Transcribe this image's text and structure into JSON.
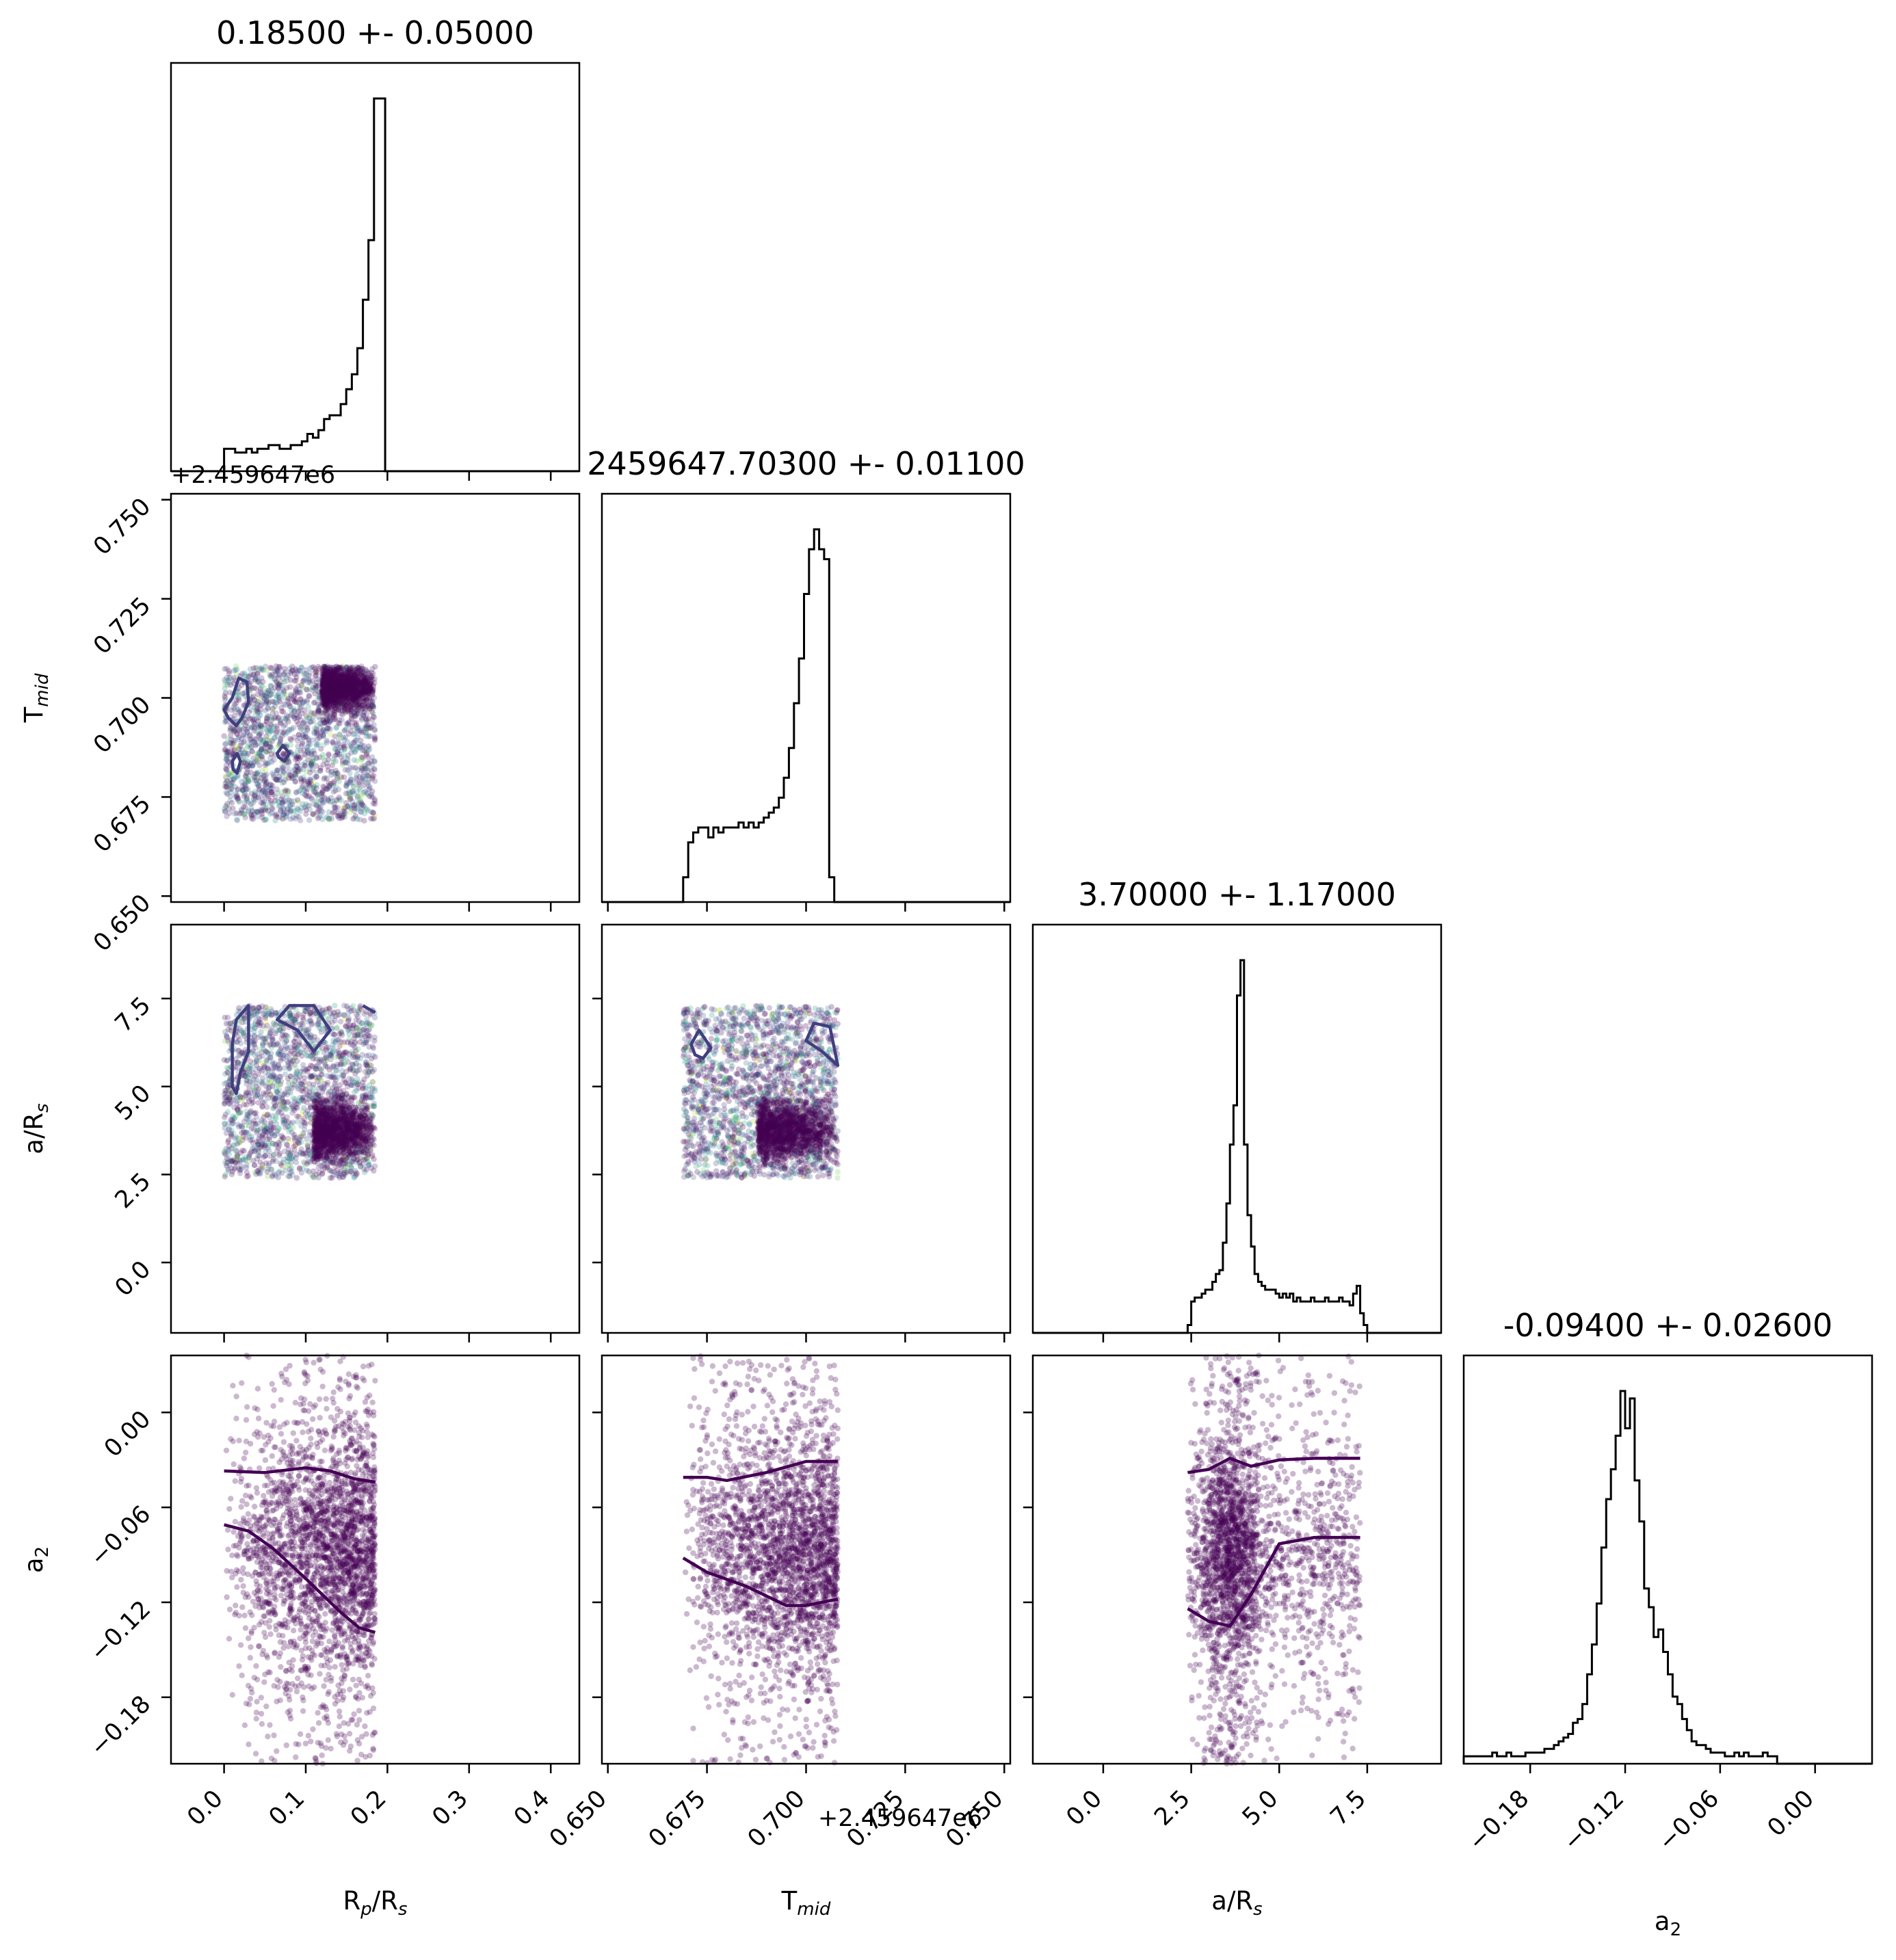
{
  "chart_data": {
    "type": "corner",
    "parameters": [
      {
        "key": "rp",
        "label_main": "R",
        "label_sub": "p",
        "label_rest": "/R",
        "label_sub2": "s",
        "range": [
          -0.065,
          0.435
        ],
        "ticks": [
          "0.0",
          "0.1",
          "0.2",
          "0.3",
          "0.4"
        ],
        "tick_values": [
          0,
          0.1,
          0.2,
          0.3,
          0.4
        ],
        "title": "0.18500 +- 0.05000",
        "offset": ""
      },
      {
        "key": "tmid",
        "label_main": "T",
        "label_sub": "mid",
        "label_rest": "",
        "label_sub2": "",
        "range": [
          0.6485,
          0.7515
        ],
        "ticks": [
          "0.650",
          "0.675",
          "0.700",
          "0.725",
          "0.750"
        ],
        "tick_values": [
          0.65,
          0.675,
          0.7,
          0.725,
          0.75
        ],
        "title": "2459647.70300 +- 0.01100",
        "offset": "+2.459647e6"
      },
      {
        "key": "ars",
        "label_main": "a/R",
        "label_sub": "",
        "label_rest": "",
        "label_sub2": "s",
        "range": [
          -2.0,
          9.6
        ],
        "ticks": [
          "0.0",
          "2.5",
          "5.0",
          "7.5"
        ],
        "tick_values": [
          0,
          2.5,
          5.0,
          7.5
        ],
        "title": "3.70000 +- 1.17000",
        "offset": ""
      },
      {
        "key": "a2",
        "label_main": "a",
        "label_sub": "",
        "label_rest": "",
        "label_sub2": "2",
        "range": [
          -0.222,
          0.036
        ],
        "ticks": [
          "−0.18",
          "−0.12",
          "−0.06",
          "0.00"
        ],
        "tick_values": [
          -0.18,
          -0.12,
          -0.06,
          0.0
        ],
        "title": "-0.09400 +- 0.02600",
        "offset": ""
      }
    ],
    "histograms": {
      "rp": {
        "bin_edges_start": 0.0,
        "bin_width": 0.0068,
        "counts": [
          6,
          6,
          5,
          5,
          6,
          5,
          6,
          6,
          7,
          7,
          6,
          6,
          7,
          7,
          8,
          10,
          9,
          11,
          14,
          15,
          15,
          18,
          22,
          26,
          33,
          46,
          62,
          100,
          100,
          0
        ]
      },
      "tmid": {
        "bin_edges_start": 0.669,
        "bin_width": 0.00127,
        "counts": [
          5,
          12,
          14,
          15,
          15,
          13,
          15,
          14,
          15,
          15,
          15,
          16,
          15,
          16,
          15,
          16,
          17,
          18,
          19,
          21,
          25,
          31,
          40,
          49,
          62,
          71,
          75,
          71,
          69,
          5
        ]
      },
      "ars": {
        "bin_edges_start": 2.4,
        "bin_width": 0.1,
        "counts": [
          2,
          8,
          9,
          9,
          10,
          11,
          11,
          13,
          15,
          16,
          23,
          33,
          48,
          58,
          86,
          95,
          48,
          30,
          22,
          15,
          13,
          12,
          11,
          11,
          11,
          10,
          9,
          10,
          9,
          10,
          8,
          9,
          8,
          8,
          8,
          9,
          8,
          8,
          8,
          9,
          8,
          8,
          8,
          9,
          8,
          8,
          7,
          10,
          12,
          5,
          2
        ]
      },
      "a2": {
        "bin_edges_start": -0.222,
        "bin_width": 0.003,
        "counts": [
          2,
          2,
          2,
          2,
          2,
          2,
          3,
          2,
          2,
          3,
          2,
          2,
          2,
          3,
          3,
          3,
          3,
          4,
          4,
          5,
          6,
          7,
          8,
          11,
          12,
          16,
          24,
          32,
          43,
          58,
          71,
          79,
          88,
          100,
          90,
          98,
          76,
          65,
          47,
          42,
          34,
          36,
          30,
          24,
          18,
          16,
          12,
          9,
          6,
          5,
          5,
          4,
          3,
          3,
          3,
          2,
          2,
          3,
          2,
          3,
          2,
          2,
          2,
          3,
          2,
          2
        ]
      }
    },
    "scatter_panels": [
      {
        "x": "rp",
        "y": "tmid",
        "extent_x": [
          0.0,
          0.185
        ],
        "extent_y": [
          0.669,
          0.708
        ],
        "core_x": [
          0.12,
          0.185
        ],
        "core_y": [
          0.697,
          0.708
        ],
        "colored": true
      },
      {
        "x": "rp",
        "y": "ars",
        "extent_x": [
          0.0,
          0.185
        ],
        "extent_y": [
          2.4,
          7.3
        ],
        "core_x": [
          0.11,
          0.185
        ],
        "core_y": [
          2.9,
          4.6
        ],
        "colored": true
      },
      {
        "x": "tmid",
        "y": "ars",
        "extent_x": [
          0.669,
          0.708
        ],
        "extent_y": [
          2.4,
          7.3
        ],
        "core_x": [
          0.688,
          0.708
        ],
        "core_y": [
          2.9,
          4.6
        ],
        "colored": true
      },
      {
        "x": "rp",
        "y": "a2",
        "extent_x": [
          0.0,
          0.185
        ],
        "extent_y": [
          -0.222,
          0.036
        ],
        "colored": false
      },
      {
        "x": "tmid",
        "y": "a2",
        "extent_x": [
          0.669,
          0.708
        ],
        "extent_y": [
          -0.222,
          0.036
        ],
        "colored": false
      },
      {
        "x": "ars",
        "y": "a2",
        "extent_x": [
          2.4,
          7.3
        ],
        "extent_y": [
          -0.222,
          0.036
        ],
        "colored": false
      }
    ],
    "contours": [
      {
        "panel": "rp-tmid",
        "color": "#3f3f7f",
        "paths": [
          [
            [
              0.0,
              0.697
            ],
            [
              0.01,
              0.7
            ],
            [
              0.018,
              0.705
            ],
            [
              0.028,
              0.704
            ],
            [
              0.03,
              0.699
            ],
            [
              0.022,
              0.695
            ],
            [
              0.015,
              0.693
            ],
            [
              0.005,
              0.695
            ]
          ],
          [
            [
              0.01,
              0.684
            ],
            [
              0.016,
              0.686
            ],
            [
              0.02,
              0.684
            ],
            [
              0.016,
              0.681
            ],
            [
              0.011,
              0.682
            ]
          ],
          [
            [
              0.065,
              0.686
            ],
            [
              0.072,
              0.688
            ],
            [
              0.08,
              0.686
            ],
            [
              0.074,
              0.684
            ],
            [
              0.067,
              0.685
            ]
          ]
        ]
      },
      {
        "panel": "rp-ars",
        "color": "#3f3f7f",
        "paths": [
          [
            [
              0.01,
              6.2
            ],
            [
              0.015,
              6.9
            ],
            [
              0.03,
              7.3
            ],
            [
              0.03,
              6.0
            ],
            [
              0.02,
              5.4
            ],
            [
              0.015,
              4.8
            ],
            [
              0.01,
              5.0
            ]
          ],
          [
            [
              0.065,
              6.9
            ],
            [
              0.09,
              6.6
            ],
            [
              0.11,
              6.0
            ],
            [
              0.13,
              6.6
            ],
            [
              0.11,
              7.3
            ],
            [
              0.08,
              7.3
            ]
          ],
          [
            [
              0.185,
              7.1
            ],
            [
              0.17,
              7.3
            ]
          ]
        ]
      },
      {
        "panel": "tmid-ars",
        "color": "#3f3f7f",
        "paths": [
          [
            [
              0.671,
              6.2
            ],
            [
              0.673,
              6.6
            ],
            [
              0.676,
              6.1
            ],
            [
              0.674,
              5.8
            ],
            [
              0.672,
              5.9
            ]
          ],
          [
            [
              0.702,
              6.8
            ],
            [
              0.706,
              6.7
            ],
            [
              0.708,
              5.6
            ],
            [
              0.704,
              6.0
            ],
            [
              0.7,
              6.3
            ]
          ]
        ]
      },
      {
        "panel": "rp-a2",
        "color": "#440154",
        "paths": [
          [
            [
              0.0,
              -0.037
            ],
            [
              0.05,
              -0.038
            ],
            [
              0.1,
              -0.035
            ],
            [
              0.13,
              -0.037
            ],
            [
              0.16,
              -0.042
            ],
            [
              0.185,
              -0.044
            ]
          ],
          [
            [
              0.0,
              -0.071
            ],
            [
              0.03,
              -0.075
            ],
            [
              0.06,
              -0.086
            ],
            [
              0.1,
              -0.105
            ],
            [
              0.14,
              -0.125
            ],
            [
              0.165,
              -0.136
            ],
            [
              0.185,
              -0.139
            ]
          ]
        ]
      },
      {
        "panel": "tmid-a2",
        "color": "#440154",
        "paths": [
          [
            [
              0.669,
              -0.041
            ],
            [
              0.675,
              -0.041
            ],
            [
              0.68,
              -0.043
            ],
            [
              0.69,
              -0.038
            ],
            [
              0.7,
              -0.031
            ],
            [
              0.708,
              -0.031
            ]
          ],
          [
            [
              0.669,
              -0.092
            ],
            [
              0.675,
              -0.101
            ],
            [
              0.685,
              -0.11
            ],
            [
              0.695,
              -0.122
            ],
            [
              0.7,
              -0.122
            ],
            [
              0.708,
              -0.118
            ]
          ]
        ]
      },
      {
        "panel": "ars-a2",
        "color": "#440154",
        "paths": [
          [
            [
              2.4,
              -0.038
            ],
            [
              3.0,
              -0.036
            ],
            [
              3.6,
              -0.029
            ],
            [
              4.2,
              -0.034
            ],
            [
              5.0,
              -0.03
            ],
            [
              6.0,
              -0.029
            ],
            [
              7.3,
              -0.029
            ]
          ],
          [
            [
              2.4,
              -0.124
            ],
            [
              3.0,
              -0.132
            ],
            [
              3.6,
              -0.135
            ],
            [
              4.2,
              -0.115
            ],
            [
              5.0,
              -0.083
            ],
            [
              6.0,
              -0.079
            ],
            [
              7.3,
              -0.079
            ]
          ]
        ]
      }
    ]
  }
}
